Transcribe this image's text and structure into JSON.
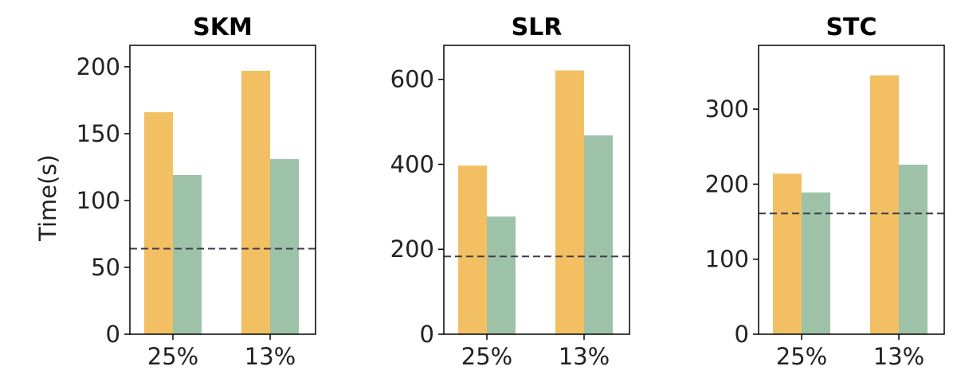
{
  "colors": {
    "bar_orange": "#F2C062",
    "bar_green": "#9DC2A8",
    "baseline": "#3C3C4A",
    "axis": "#000000"
  },
  "chart_data": [
    {
      "type": "bar",
      "title": "SKM",
      "ylabel": "Time(s)",
      "categories": [
        "25%",
        "13%"
      ],
      "series": [
        {
          "values": [
            166,
            197
          ],
          "color": "#F2C062"
        },
        {
          "values": [
            119,
            131
          ],
          "color": "#9DC2A8"
        }
      ],
      "baseline": 64,
      "ylim": [
        0,
        216
      ],
      "yticks": [
        0,
        50,
        100,
        150,
        200
      ]
    },
    {
      "type": "bar",
      "title": "SLR",
      "ylabel": "",
      "categories": [
        "25%",
        "13%"
      ],
      "series": [
        {
          "values": [
            397,
            621
          ],
          "color": "#F2C062"
        },
        {
          "values": [
            277,
            468
          ],
          "color": "#9DC2A8"
        }
      ],
      "baseline": 183,
      "ylim": [
        0,
        680
      ],
      "yticks": [
        0,
        200,
        400,
        600
      ]
    },
    {
      "type": "bar",
      "title": "STC",
      "ylabel": "",
      "categories": [
        "25%",
        "13%"
      ],
      "series": [
        {
          "values": [
            214,
            345
          ],
          "color": "#F2C062"
        },
        {
          "values": [
            189,
            226
          ],
          "color": "#9DC2A8"
        }
      ],
      "baseline": 161,
      "ylim": [
        0,
        385
      ],
      "yticks": [
        0,
        100,
        200,
        300
      ]
    }
  ]
}
